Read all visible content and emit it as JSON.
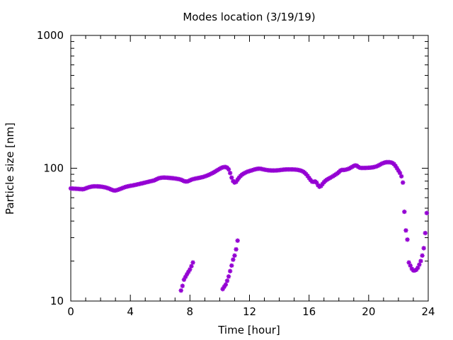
{
  "chart_data": {
    "type": "scatter",
    "title": "Modes location (3/19/19)",
    "xlabel": "Time [hour]",
    "ylabel": "Particle size [nm]",
    "xlim": [
      0,
      24
    ],
    "ylim": [
      10,
      1000
    ],
    "yscale": "log",
    "x_ticks": [
      "0",
      "4",
      "8",
      "12",
      "16",
      "20",
      "24"
    ],
    "y_ticks": [
      "10",
      "100",
      "1000"
    ],
    "grid": false,
    "marker_color": "#9400D3",
    "marker": "asterisk",
    "series": [
      {
        "points": [
          [
            0.0,
            70.5
          ],
          [
            0.1,
            70.3
          ],
          [
            0.2,
            70.2
          ],
          [
            0.3,
            70.1
          ],
          [
            0.4,
            70.0
          ],
          [
            0.5,
            69.9
          ],
          [
            0.6,
            69.7
          ],
          [
            0.7,
            69.6
          ],
          [
            0.8,
            69.5
          ],
          [
            0.9,
            69.8
          ],
          [
            1.0,
            70.5
          ],
          [
            1.1,
            71.2
          ],
          [
            1.2,
            71.8
          ],
          [
            1.3,
            72.3
          ],
          [
            1.4,
            72.7
          ],
          [
            1.5,
            73.0
          ],
          [
            1.6,
            73.1
          ],
          [
            1.7,
            73.1
          ],
          [
            1.8,
            73.0
          ],
          [
            1.9,
            72.9
          ],
          [
            2.0,
            72.7
          ],
          [
            2.1,
            72.5
          ],
          [
            2.2,
            72.2
          ],
          [
            2.3,
            71.8
          ],
          [
            2.4,
            71.3
          ],
          [
            2.5,
            70.7
          ],
          [
            2.6,
            70.0
          ],
          [
            2.7,
            69.2
          ],
          [
            2.8,
            68.5
          ],
          [
            2.9,
            68.0
          ],
          [
            3.0,
            68.0
          ],
          [
            3.1,
            68.4
          ],
          [
            3.2,
            69.0
          ],
          [
            3.3,
            69.7
          ],
          [
            3.4,
            70.4
          ],
          [
            3.5,
            71.1
          ],
          [
            3.6,
            71.8
          ],
          [
            3.7,
            72.4
          ],
          [
            3.8,
            72.9
          ],
          [
            3.9,
            73.3
          ],
          [
            4.0,
            73.7
          ],
          [
            4.1,
            74.0
          ],
          [
            4.2,
            74.4
          ],
          [
            4.3,
            74.8
          ],
          [
            4.4,
            75.2
          ],
          [
            4.5,
            75.7
          ],
          [
            4.6,
            76.1
          ],
          [
            4.7,
            76.6
          ],
          [
            4.8,
            77.0
          ],
          [
            4.9,
            77.5
          ],
          [
            5.0,
            78.0
          ],
          [
            5.1,
            78.5
          ],
          [
            5.2,
            79.0
          ],
          [
            5.3,
            79.5
          ],
          [
            5.4,
            80.0
          ],
          [
            5.5,
            80.5
          ],
          [
            5.6,
            81.0
          ],
          [
            5.7,
            82.0
          ],
          [
            5.8,
            83.0
          ],
          [
            5.9,
            84.0
          ],
          [
            6.0,
            84.5
          ],
          [
            6.1,
            84.8
          ],
          [
            6.2,
            85.0
          ],
          [
            6.3,
            85.0
          ],
          [
            6.4,
            84.9
          ],
          [
            6.5,
            84.8
          ],
          [
            6.6,
            84.6
          ],
          [
            6.7,
            84.4
          ],
          [
            6.8,
            84.2
          ],
          [
            6.9,
            84.0
          ],
          [
            7.0,
            83.7
          ],
          [
            7.1,
            83.4
          ],
          [
            7.2,
            83.0
          ],
          [
            7.3,
            82.6
          ],
          [
            7.4,
            82.0
          ],
          [
            7.5,
            81.0
          ],
          [
            7.6,
            80.0
          ],
          [
            7.7,
            79.5
          ],
          [
            7.8,
            79.5
          ],
          [
            7.9,
            80.0
          ],
          [
            8.0,
            81.0
          ],
          [
            8.1,
            82.0
          ],
          [
            8.2,
            82.7
          ],
          [
            8.3,
            83.2
          ],
          [
            8.4,
            83.7
          ],
          [
            8.5,
            84.1
          ],
          [
            8.6,
            84.5
          ],
          [
            8.7,
            85.0
          ],
          [
            8.8,
            85.5
          ],
          [
            8.9,
            86.0
          ],
          [
            9.0,
            86.8
          ],
          [
            9.1,
            87.6
          ],
          [
            9.2,
            88.5
          ],
          [
            9.3,
            89.5
          ],
          [
            9.4,
            90.6
          ],
          [
            9.5,
            91.8
          ],
          [
            9.6,
            93.0
          ],
          [
            9.7,
            94.5
          ],
          [
            9.8,
            96.0
          ],
          [
            9.9,
            97.5
          ],
          [
            10.0,
            99.0
          ],
          [
            10.1,
            100.5
          ],
          [
            10.2,
            101.5
          ],
          [
            10.3,
            102.0
          ],
          [
            10.4,
            102.0
          ],
          [
            10.5,
            101.0
          ],
          [
            10.6,
            98.0
          ],
          [
            10.7,
            92.0
          ],
          [
            10.8,
            85.0
          ],
          [
            10.9,
            80.0
          ],
          [
            11.0,
            78.0
          ],
          [
            11.1,
            79.0
          ],
          [
            11.2,
            82.0
          ],
          [
            11.3,
            85.0
          ],
          [
            11.4,
            87.5
          ],
          [
            11.5,
            89.5
          ],
          [
            11.6,
            91.0
          ],
          [
            11.7,
            92.3
          ],
          [
            11.8,
            93.5
          ],
          [
            11.9,
            94.5
          ],
          [
            12.0,
            95.2
          ],
          [
            12.1,
            96.0
          ],
          [
            12.2,
            96.8
          ],
          [
            12.3,
            97.6
          ],
          [
            12.4,
            98.3
          ],
          [
            12.5,
            98.8
          ],
          [
            12.6,
            99.2
          ],
          [
            12.7,
            99.2
          ],
          [
            12.8,
            98.8
          ],
          [
            12.9,
            98.2
          ],
          [
            13.0,
            97.6
          ],
          [
            13.1,
            97.2
          ],
          [
            13.2,
            96.8
          ],
          [
            13.3,
            96.5
          ],
          [
            13.4,
            96.3
          ],
          [
            13.5,
            96.2
          ],
          [
            13.6,
            96.2
          ],
          [
            13.7,
            96.2
          ],
          [
            13.8,
            96.3
          ],
          [
            13.9,
            96.5
          ],
          [
            14.0,
            96.7
          ],
          [
            14.1,
            97.0
          ],
          [
            14.2,
            97.3
          ],
          [
            14.3,
            97.6
          ],
          [
            14.4,
            97.8
          ],
          [
            14.5,
            98.0
          ],
          [
            14.6,
            98.0
          ],
          [
            14.7,
            98.0
          ],
          [
            14.8,
            98.0
          ],
          [
            14.9,
            97.9
          ],
          [
            15.0,
            97.8
          ],
          [
            15.1,
            97.6
          ],
          [
            15.2,
            97.3
          ],
          [
            15.3,
            96.9
          ],
          [
            15.4,
            96.3
          ],
          [
            15.5,
            95.5
          ],
          [
            15.6,
            94.3
          ],
          [
            15.7,
            92.6
          ],
          [
            15.8,
            90.3
          ],
          [
            15.9,
            87.5
          ],
          [
            16.0,
            84.5
          ],
          [
            16.1,
            81.5
          ],
          [
            16.2,
            79.3
          ],
          [
            16.3,
            79.0
          ],
          [
            16.4,
            79.5
          ],
          [
            16.5,
            78.0
          ],
          [
            16.6,
            74.5
          ],
          [
            16.7,
            72.5
          ],
          [
            16.8,
            73.5
          ],
          [
            16.9,
            76.0
          ],
          [
            17.0,
            78.5
          ],
          [
            17.1,
            80.5
          ],
          [
            17.2,
            82.0
          ],
          [
            17.3,
            83.3
          ],
          [
            17.4,
            84.5
          ],
          [
            17.5,
            85.7
          ],
          [
            17.6,
            87.0
          ],
          [
            17.7,
            88.5
          ],
          [
            17.8,
            90.0
          ],
          [
            17.9,
            91.5
          ],
          [
            18.0,
            93.5
          ],
          [
            18.1,
            96.0
          ],
          [
            18.2,
            97.0
          ],
          [
            18.3,
            97.0
          ],
          [
            18.4,
            97.2
          ],
          [
            18.5,
            97.8
          ],
          [
            18.6,
            98.5
          ],
          [
            18.7,
            99.5
          ],
          [
            18.8,
            101.0
          ],
          [
            18.9,
            102.5
          ],
          [
            19.0,
            104.0
          ],
          [
            19.1,
            105.0
          ],
          [
            19.2,
            104.5
          ],
          [
            19.3,
            102.5
          ],
          [
            19.4,
            101.0
          ],
          [
            19.5,
            100.5
          ],
          [
            19.6,
            100.5
          ],
          [
            19.7,
            100.5
          ],
          [
            19.8,
            100.6
          ],
          [
            19.9,
            100.7
          ],
          [
            20.0,
            100.8
          ],
          [
            20.1,
            101.0
          ],
          [
            20.2,
            101.3
          ],
          [
            20.3,
            101.7
          ],
          [
            20.4,
            102.3
          ],
          [
            20.5,
            103.0
          ],
          [
            20.6,
            104.0
          ],
          [
            20.7,
            105.5
          ],
          [
            20.8,
            107.0
          ],
          [
            20.9,
            108.5
          ],
          [
            21.0,
            109.5
          ],
          [
            21.1,
            110.5
          ],
          [
            21.2,
            111.0
          ],
          [
            21.3,
            111.0
          ],
          [
            21.4,
            111.0
          ],
          [
            21.5,
            110.5
          ],
          [
            21.6,
            109.5
          ],
          [
            21.7,
            107.5
          ],
          [
            21.8,
            104.0
          ],
          [
            21.9,
            100.0
          ],
          [
            22.0,
            96.0
          ],
          [
            22.1,
            92.0
          ],
          [
            22.2,
            87.0
          ],
          [
            22.3,
            78.0
          ],
          [
            22.4,
            47.0
          ],
          [
            22.5,
            34.0
          ],
          [
            22.6,
            29.0
          ],
          [
            22.7,
            19.5
          ],
          [
            22.8,
            18.5
          ],
          [
            22.9,
            17.5
          ],
          [
            23.0,
            17.0
          ],
          [
            23.1,
            17.0
          ],
          [
            23.2,
            17.2
          ],
          [
            23.3,
            17.8
          ],
          [
            23.4,
            18.8
          ],
          [
            23.5,
            20.0
          ],
          [
            23.6,
            22.0
          ],
          [
            23.7,
            25.0
          ],
          [
            23.8,
            32.5
          ],
          [
            23.9,
            46.0
          ]
        ]
      },
      {
        "points": [
          [
            7.4,
            12.0
          ],
          [
            7.5,
            13.0
          ],
          [
            7.6,
            14.5
          ],
          [
            7.7,
            15.2
          ],
          [
            7.8,
            15.9
          ],
          [
            7.9,
            16.6
          ],
          [
            8.0,
            17.3
          ],
          [
            8.1,
            18.3
          ],
          [
            8.2,
            19.5
          ]
        ]
      },
      {
        "points": [
          [
            10.2,
            12.3
          ],
          [
            10.3,
            12.8
          ],
          [
            10.4,
            13.3
          ],
          [
            10.5,
            14.2
          ],
          [
            10.6,
            15.3
          ],
          [
            10.7,
            16.8
          ],
          [
            10.8,
            18.5
          ],
          [
            10.9,
            20.5
          ],
          [
            11.0,
            22.0
          ],
          [
            11.1,
            24.5
          ],
          [
            11.2,
            28.5
          ]
        ]
      }
    ]
  }
}
